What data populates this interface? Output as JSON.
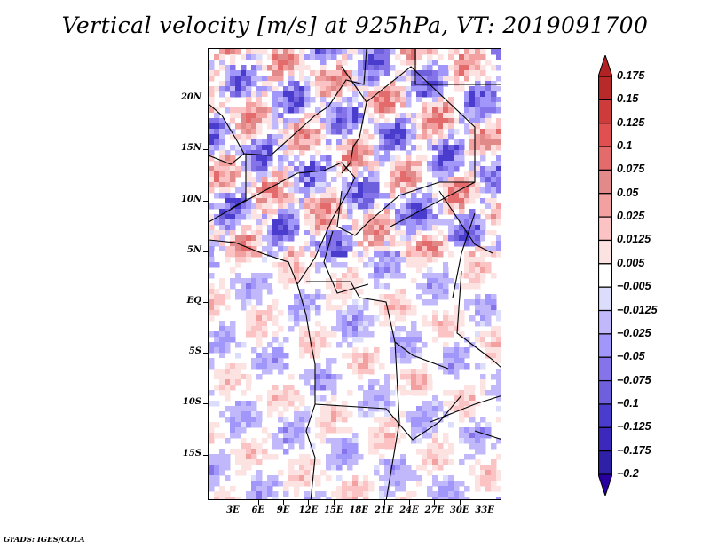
{
  "title": "Vertical velocity [m/s] at 925hPa, VT: 2019091700",
  "footer": "GrADS: IGES/COLA",
  "map": {
    "variable": "Vertical velocity",
    "units": "m/s",
    "level": "925hPa",
    "valid_time": "2019091700",
    "lat_labels": [
      "20N",
      "15N",
      "10N",
      "5N",
      "EQ",
      "5S",
      "10S",
      "15S"
    ],
    "lat_values": [
      20,
      15,
      10,
      5,
      0,
      -5,
      -10,
      -15
    ],
    "lon_labels": [
      "3E",
      "6E",
      "9E",
      "12E",
      "15E",
      "18E",
      "21E",
      "24E",
      "27E",
      "30E",
      "33E"
    ],
    "lon_values": [
      3,
      6,
      9,
      12,
      15,
      18,
      21,
      24,
      27,
      30,
      33
    ],
    "lat_range": [
      -19.5,
      25
    ],
    "lon_range": [
      0,
      35
    ]
  },
  "colorbar": {
    "labels": [
      "0.175",
      "0.15",
      "0.125",
      "0.1",
      "0.075",
      "0.05",
      "0.025",
      "0.0125",
      "0.005",
      "-0.005",
      "-0.0125",
      "-0.025",
      "-0.05",
      "-0.075",
      "-0.1",
      "-0.125",
      "-0.175",
      "-0.2"
    ],
    "colors": [
      "#b22222",
      "#b82a2a",
      "#cd3b3b",
      "#e05050",
      "#e46b6b",
      "#e28a8a",
      "#f2a0a0",
      "#fbc3c3",
      "#fde2e2",
      "#ffffff",
      "#dcdcfc",
      "#c0b8fb",
      "#a196fa",
      "#8573ea",
      "#6e5fdc",
      "#4a3ccc",
      "#3c28bc",
      "#2f20a8",
      "#2800a0"
    ],
    "extend": "both"
  }
}
